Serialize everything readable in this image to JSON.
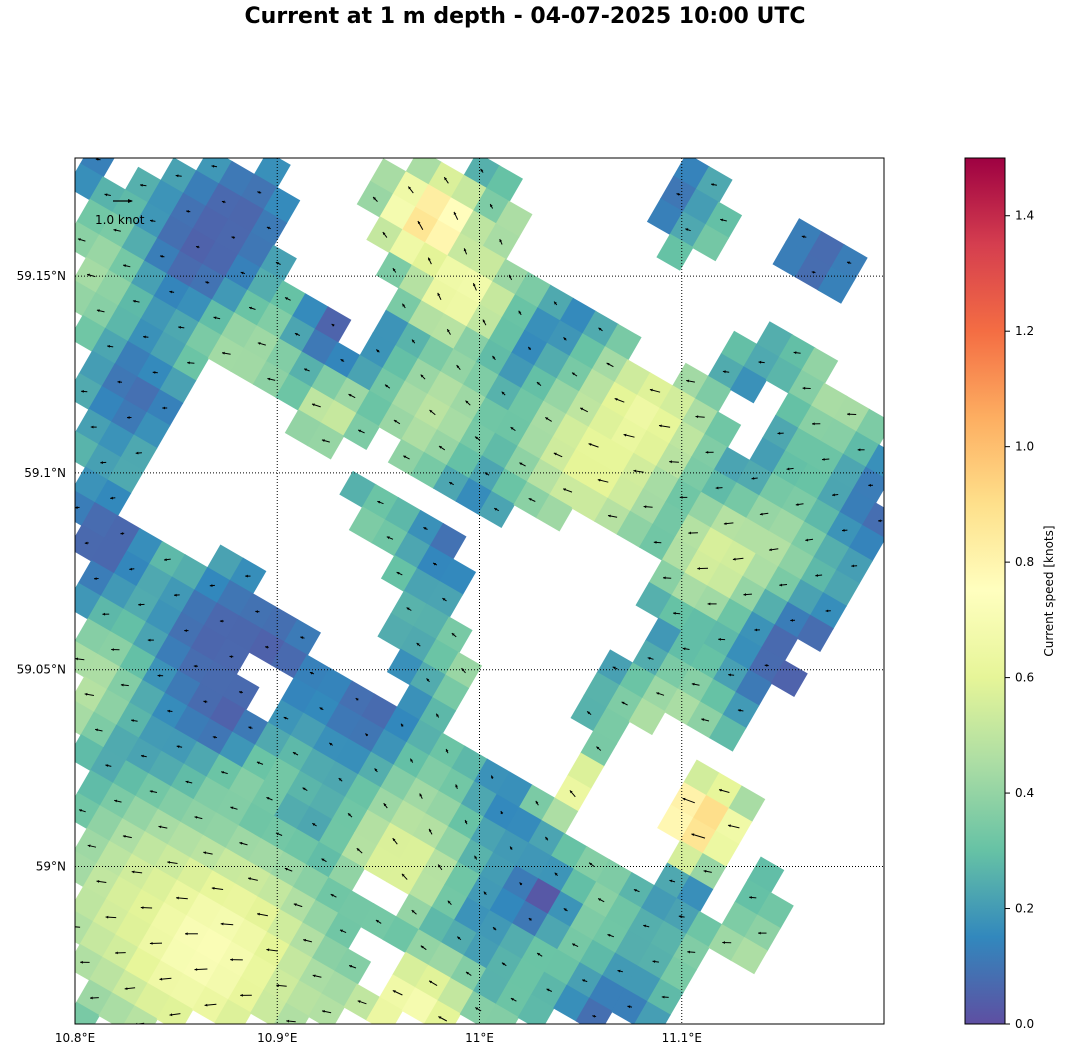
{
  "title": "Current at 1 m depth - 04-07-2025 10:00 UTC",
  "map": {
    "lon_range": [
      10.8,
      11.2
    ],
    "lat_range": [
      58.96,
      59.18
    ],
    "lon_ticks": [
      {
        "value": 10.8,
        "label": "10.8°E"
      },
      {
        "value": 10.9,
        "label": "10.9°E"
      },
      {
        "value": 11.0,
        "label": "11°E"
      },
      {
        "value": 11.1,
        "label": "11.1°E"
      }
    ],
    "lat_ticks": [
      {
        "value": 59.15,
        "label": "59.15°N"
      },
      {
        "value": 59.1,
        "label": "59.1°N"
      },
      {
        "value": 59.05,
        "label": "59.05°N"
      },
      {
        "value": 59.0,
        "label": "59°N"
      }
    ],
    "gridlines": "dotted",
    "land_color": "#ffffff"
  },
  "quiver_key": {
    "label": "1.0 knot",
    "value_knots": 1.0
  },
  "colorbar": {
    "label": "Current speed [knots]",
    "range": [
      0,
      1.5
    ],
    "ticks": [
      "0.0",
      "0.2",
      "0.4",
      "0.6",
      "0.8",
      "1.0",
      "1.2",
      "1.4"
    ],
    "colormap": "Spectral_r",
    "colors": [
      "#5e4fa2",
      "#3288bd",
      "#66c2a5",
      "#abdda4",
      "#e6f598",
      "#ffffbf",
      "#fee08b",
      "#fdae61",
      "#f46d43",
      "#d53e4f",
      "#9e0142"
    ]
  }
}
